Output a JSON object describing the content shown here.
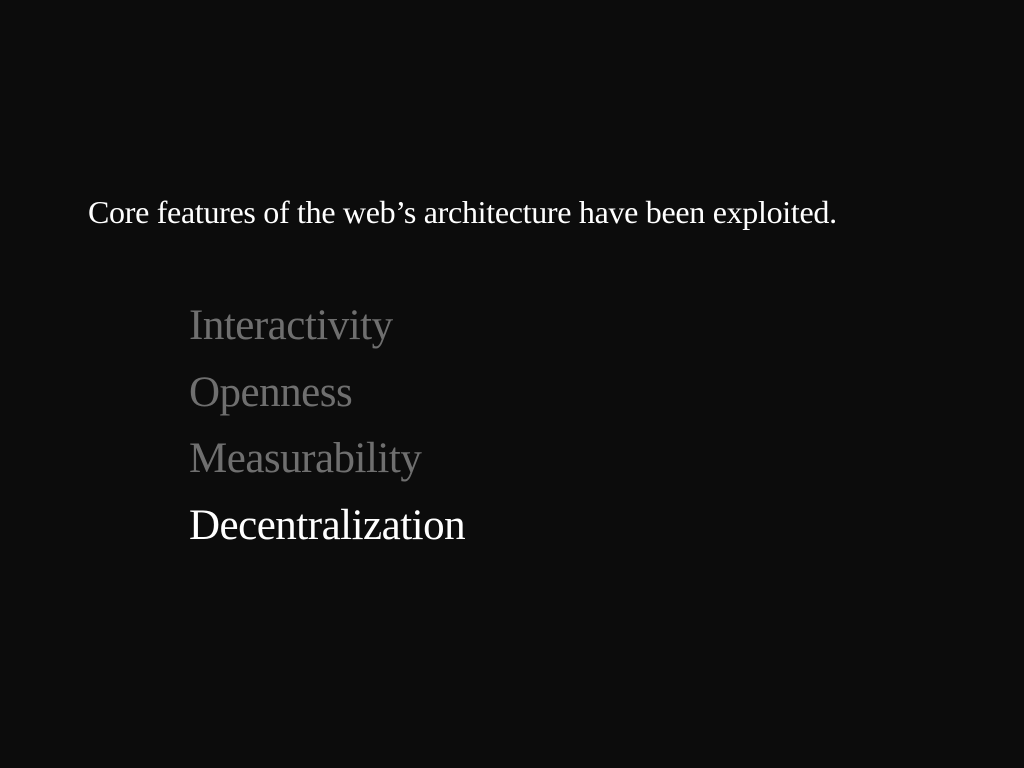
{
  "slide": {
    "headline": "Core features of the web’s architecture have been exploited.",
    "items": [
      {
        "label": "Interactivity",
        "state": "dimmed"
      },
      {
        "label": "Openness",
        "state": "dimmed"
      },
      {
        "label": "Measurability",
        "state": "dimmed"
      },
      {
        "label": "Decentralization",
        "state": "highlighted"
      }
    ]
  },
  "colors": {
    "background": "#0c0c0c",
    "text_primary": "#ffffff",
    "text_dimmed": "#6f6f6f"
  }
}
